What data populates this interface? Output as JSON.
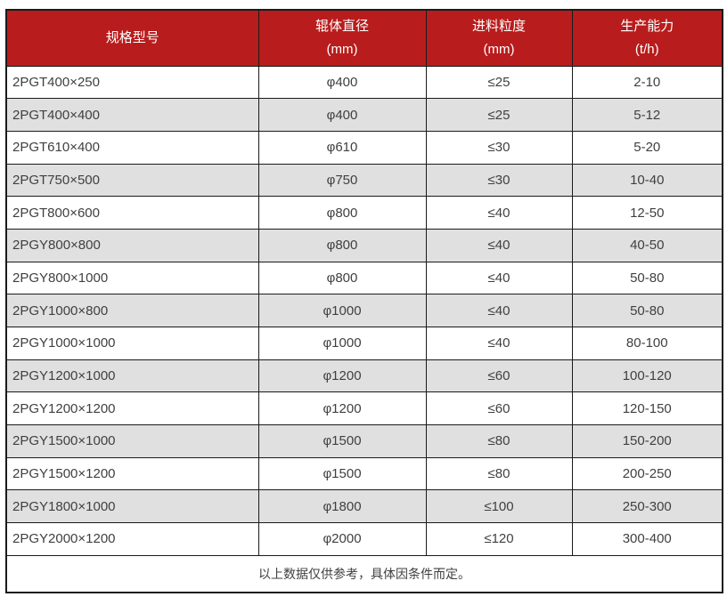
{
  "chart_data": {
    "type": "table",
    "header": [
      {
        "label": "规格型号",
        "unit": ""
      },
      {
        "label": "辊体直径",
        "unit": "(mm)"
      },
      {
        "label": "进料粒度",
        "unit": "(mm)"
      },
      {
        "label": "生产能力",
        "unit": "(t/h)"
      }
    ],
    "columns": [
      "规格型号",
      "辊体直径 (mm)",
      "进料粒度 (mm)",
      "生产能力 (t/h)"
    ],
    "rows": [
      [
        "2PGT400×250",
        "φ400",
        "≤25",
        "2-10"
      ],
      [
        "2PGT400×400",
        "φ400",
        "≤25",
        "5-12"
      ],
      [
        "2PGT610×400",
        "φ610",
        "≤30",
        "5-20"
      ],
      [
        "2PGT750×500",
        "φ750",
        "≤30",
        "10-40"
      ],
      [
        "2PGT800×600",
        "φ800",
        "≤40",
        "12-50"
      ],
      [
        "2PGY800×800",
        "φ800",
        "≤40",
        "40-50"
      ],
      [
        "2PGY800×1000",
        "φ800",
        "≤40",
        "50-80"
      ],
      [
        "2PGY1000×800",
        "φ1000",
        "≤40",
        "50-80"
      ],
      [
        "2PGY1000×1000",
        "φ1000",
        "≤40",
        "80-100"
      ],
      [
        "2PGY1200×1000",
        "φ1200",
        "≤60",
        "100-120"
      ],
      [
        "2PGY1200×1200",
        "φ1200",
        "≤60",
        "120-150"
      ],
      [
        "2PGY1500×1000",
        "φ1500",
        "≤80",
        "150-200"
      ],
      [
        "2PGY1500×1200",
        "φ1500",
        "≤80",
        "200-250"
      ],
      [
        "2PGY1800×1000",
        "φ1800",
        "≤100",
        "250-300"
      ],
      [
        "2PGY2000×1200",
        "φ2000",
        "≤120",
        "300-400"
      ]
    ],
    "footnote": "以上数据仅供参考，具体因条件而定。"
  },
  "colors": {
    "header_bg": "#b91c1c",
    "header_text": "#ffffff",
    "row_bg": "#ffffff",
    "row_alt_bg": "#e0e0e0",
    "border": "#1a1a1a",
    "body_text": "#404040"
  }
}
